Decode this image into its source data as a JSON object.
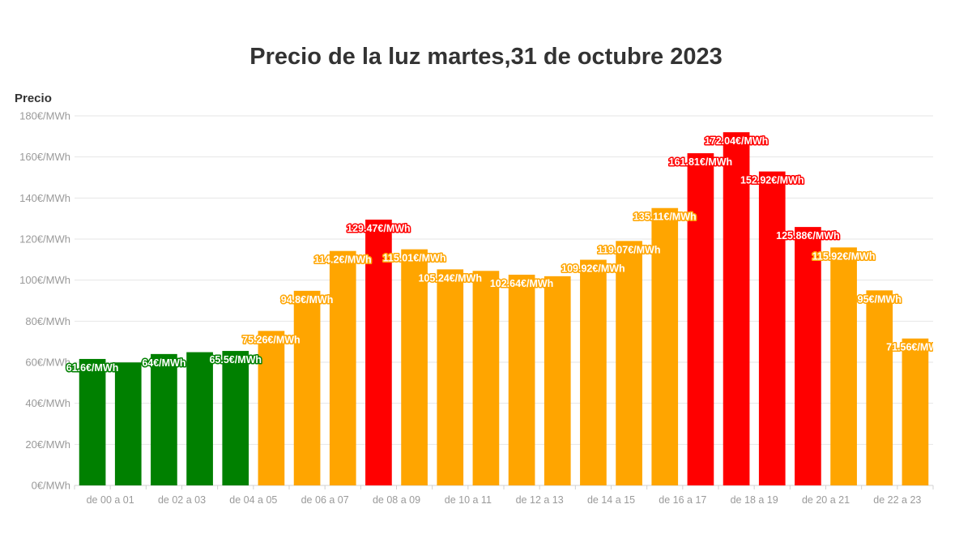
{
  "chart_data": {
    "type": "bar",
    "title": "Precio de la luz martes,31 de octubre 2023",
    "ylabel": "Precio",
    "xlabel": "",
    "ylim": [
      0,
      180
    ],
    "yticks": [
      {
        "value": 0,
        "label": "0€/MWh"
      },
      {
        "value": 20,
        "label": "20€/MWh"
      },
      {
        "value": 40,
        "label": "40€/MWh"
      },
      {
        "value": 60,
        "label": "60€/MWh"
      },
      {
        "value": 80,
        "label": "80€/MWh"
      },
      {
        "value": 100,
        "label": "100€/MWh"
      },
      {
        "value": 120,
        "label": "120€/MWh"
      },
      {
        "value": 140,
        "label": "140€/MWh"
      },
      {
        "value": 160,
        "label": "160€/MWh"
      },
      {
        "value": 180,
        "label": "180€/MWh"
      }
    ],
    "grid": true,
    "colors": {
      "green": "#008000",
      "orange": "#ffa500",
      "red": "#ff0000"
    },
    "xtick_labels": [
      {
        "index": 0,
        "label": "de 00 a 01"
      },
      {
        "index": 2,
        "label": "de 02 a 03"
      },
      {
        "index": 4,
        "label": "de 04 a 05"
      },
      {
        "index": 6,
        "label": "de 06 a 07"
      },
      {
        "index": 8,
        "label": "de 08 a 09"
      },
      {
        "index": 10,
        "label": "de 10 a 11"
      },
      {
        "index": 12,
        "label": "de 12 a 13"
      },
      {
        "index": 14,
        "label": "de 14 a 15"
      },
      {
        "index": 16,
        "label": "de 16 a 17"
      },
      {
        "index": 18,
        "label": "de 18 a 19"
      },
      {
        "index": 20,
        "label": "de 20 a 21"
      },
      {
        "index": 22,
        "label": "de 22 a 23"
      }
    ],
    "bars": [
      {
        "value": 61.6,
        "color": "green",
        "label": "61.6€/MWh"
      },
      {
        "value": 59.9,
        "color": "green",
        "label": ""
      },
      {
        "value": 64,
        "color": "green",
        "label": "64€/MWh"
      },
      {
        "value": 64.9,
        "color": "green",
        "label": ""
      },
      {
        "value": 65.5,
        "color": "green",
        "label": "65.5€/MWh"
      },
      {
        "value": 75.26,
        "color": "orange",
        "label": "75.26€/MWh"
      },
      {
        "value": 94.8,
        "color": "orange",
        "label": "94.8€/MWh"
      },
      {
        "value": 114.2,
        "color": "orange",
        "label": "114.2€/MWh"
      },
      {
        "value": 129.47,
        "color": "red",
        "label": "129.47€/MWh"
      },
      {
        "value": 115.01,
        "color": "orange",
        "label": "115.01€/MWh"
      },
      {
        "value": 105.24,
        "color": "orange",
        "label": "105.24€/MWh"
      },
      {
        "value": 104.5,
        "color": "orange",
        "label": ""
      },
      {
        "value": 102.64,
        "color": "orange",
        "label": "102.64€/MWh"
      },
      {
        "value": 101.9,
        "color": "orange",
        "label": ""
      },
      {
        "value": 109.92,
        "color": "orange",
        "label": "109.92€/MWh"
      },
      {
        "value": 119.07,
        "color": "orange",
        "label": "119.07€/MWh"
      },
      {
        "value": 135.11,
        "color": "orange",
        "label": "135.11€/MWh"
      },
      {
        "value": 161.81,
        "color": "red",
        "label": "161.81€/MWh"
      },
      {
        "value": 172.04,
        "color": "red",
        "label": "172.04€/MWh"
      },
      {
        "value": 152.92,
        "color": "red",
        "label": "152.92€/MWh"
      },
      {
        "value": 125.88,
        "color": "red",
        "label": "125.88€/MWh"
      },
      {
        "value": 115.92,
        "color": "orange",
        "label": "115.92€/MWh"
      },
      {
        "value": 95,
        "color": "orange",
        "label": "95€/MWh"
      },
      {
        "value": 71.56,
        "color": "orange",
        "label": "71.56€/MWh"
      }
    ]
  }
}
